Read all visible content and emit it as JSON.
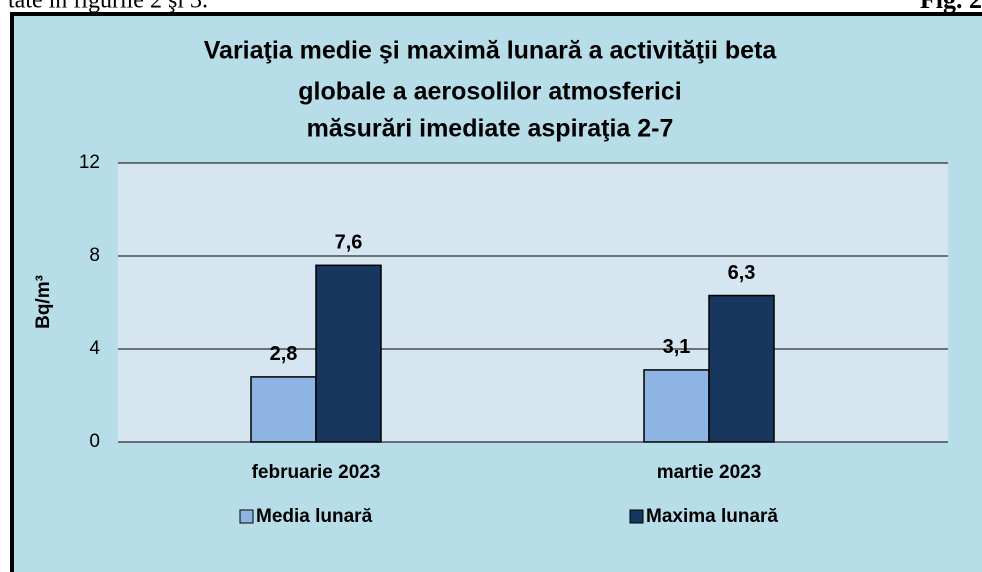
{
  "page": {
    "text_left": "tate în figurile 2 şi 3.",
    "figure_label": "Fig. 2"
  },
  "chart_data": {
    "type": "bar",
    "title": [
      "Variaţia medie şi maximă lunară a activităţii beta",
      "globale  a aerosolilor atmosferici",
      "măsurări imediate aspiraţia 2-7"
    ],
    "y_label": "Bq/m³",
    "categories": [
      "februarie 2023",
      "martie 2023"
    ],
    "series": [
      {
        "name": "Media lunară",
        "color": "#8db4e2",
        "values": [
          2.8,
          3.1
        ],
        "value_labels": [
          "2,8",
          "3,1"
        ]
      },
      {
        "name": "Maxima lunară",
        "color": "#17375e",
        "values": [
          7.6,
          6.3
        ],
        "value_labels": [
          "7,6",
          "6,3"
        ]
      }
    ],
    "ylim": [
      0,
      12
    ],
    "yticks": [
      0,
      4,
      8,
      12
    ],
    "grid": true
  }
}
